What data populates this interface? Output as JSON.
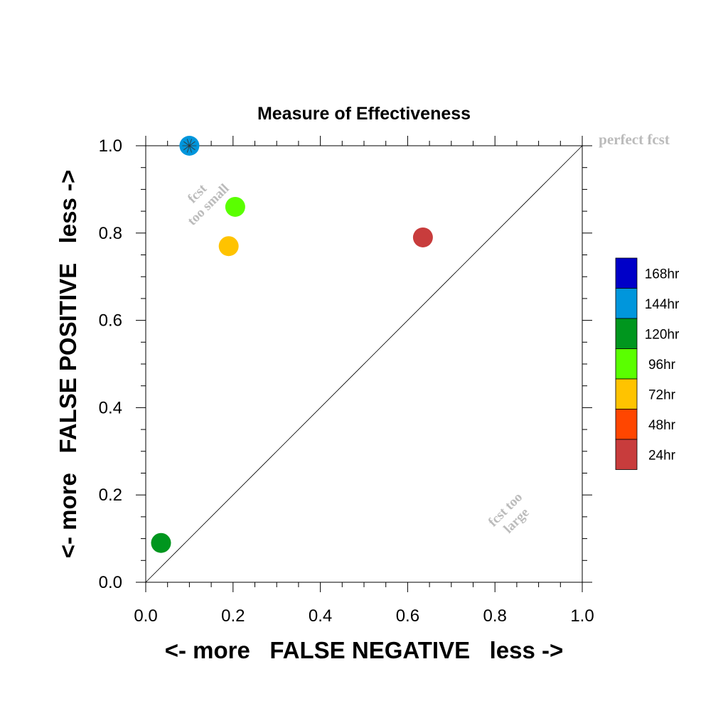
{
  "chart_data": {
    "type": "scatter",
    "title": "Measure of Effectiveness",
    "xlabel": "<- more   FALSE NEGATIVE   less ->",
    "ylabel": "<- more   FALSE POSITIVE   less ->",
    "xlim": [
      0.0,
      1.0
    ],
    "ylim": [
      0.0,
      1.0
    ],
    "x_ticks": [
      "0.0",
      "0.2",
      "0.4",
      "0.6",
      "0.8",
      "1.0"
    ],
    "y_ticks": [
      "0.0",
      "0.2",
      "0.4",
      "0.6",
      "0.8",
      "1.0"
    ],
    "grid": false,
    "diagonal": true,
    "annotations": {
      "perfect": "perfect fcst",
      "too_small_1": "fcst",
      "too_small_2": "too small",
      "too_large_1": "fcst too",
      "too_large_2": "large"
    },
    "legend_position": "right",
    "legend": [
      {
        "label": "168hr",
        "color": "#0000c8"
      },
      {
        "label": "144hr",
        "color": "#0096dc"
      },
      {
        "label": "120hr",
        "color": "#00961e"
      },
      {
        "label": "96hr",
        "color": "#5aff00"
      },
      {
        "label": "72hr",
        "color": "#ffc300"
      },
      {
        "label": "48hr",
        "color": "#ff4600"
      },
      {
        "label": "24hr",
        "color": "#c83c3c"
      }
    ],
    "points": [
      {
        "lead": "144hr",
        "x": 0.1,
        "y": 1.0,
        "color": "#0096dc"
      },
      {
        "lead": "96hr",
        "x": 0.205,
        "y": 0.86,
        "color": "#5aff00"
      },
      {
        "lead": "72hr",
        "x": 0.19,
        "y": 0.77,
        "color": "#ffc300"
      },
      {
        "lead": "24hr",
        "x": 0.635,
        "y": 0.79,
        "color": "#c83c3c"
      },
      {
        "lead": "120hr",
        "x": 0.035,
        "y": 0.09,
        "color": "#00961e"
      }
    ]
  }
}
